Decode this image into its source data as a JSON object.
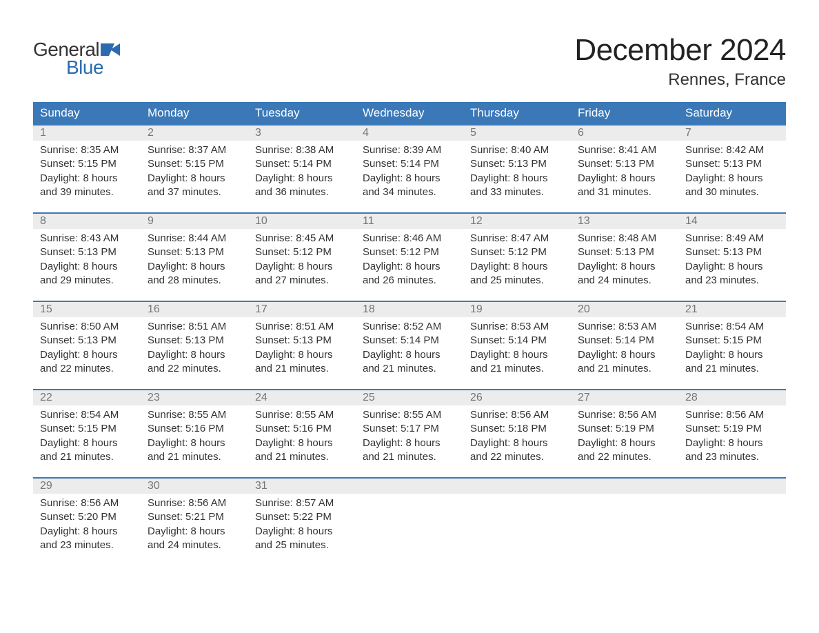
{
  "logo": {
    "text_top": "General",
    "text_bottom": "Blue"
  },
  "title": "December 2024",
  "location": "Rennes, France",
  "colors": {
    "header_bg": "#3b78b8",
    "header_text": "#ffffff",
    "daynum_bg": "#ececec",
    "daynum_text": "#767676",
    "body_text": "#333333",
    "logo_blue": "#2c6bb0",
    "week_border": "#3b78b8",
    "page_bg": "#ffffff"
  },
  "type": "calendar-table",
  "weekdays": [
    "Sunday",
    "Monday",
    "Tuesday",
    "Wednesday",
    "Thursday",
    "Friday",
    "Saturday"
  ],
  "weeks": [
    [
      {
        "day": "1",
        "sunrise": "Sunrise: 8:35 AM",
        "sunset": "Sunset: 5:15 PM",
        "d1": "Daylight: 8 hours",
        "d2": "and 39 minutes."
      },
      {
        "day": "2",
        "sunrise": "Sunrise: 8:37 AM",
        "sunset": "Sunset: 5:15 PM",
        "d1": "Daylight: 8 hours",
        "d2": "and 37 minutes."
      },
      {
        "day": "3",
        "sunrise": "Sunrise: 8:38 AM",
        "sunset": "Sunset: 5:14 PM",
        "d1": "Daylight: 8 hours",
        "d2": "and 36 minutes."
      },
      {
        "day": "4",
        "sunrise": "Sunrise: 8:39 AM",
        "sunset": "Sunset: 5:14 PM",
        "d1": "Daylight: 8 hours",
        "d2": "and 34 minutes."
      },
      {
        "day": "5",
        "sunrise": "Sunrise: 8:40 AM",
        "sunset": "Sunset: 5:13 PM",
        "d1": "Daylight: 8 hours",
        "d2": "and 33 minutes."
      },
      {
        "day": "6",
        "sunrise": "Sunrise: 8:41 AM",
        "sunset": "Sunset: 5:13 PM",
        "d1": "Daylight: 8 hours",
        "d2": "and 31 minutes."
      },
      {
        "day": "7",
        "sunrise": "Sunrise: 8:42 AM",
        "sunset": "Sunset: 5:13 PM",
        "d1": "Daylight: 8 hours",
        "d2": "and 30 minutes."
      }
    ],
    [
      {
        "day": "8",
        "sunrise": "Sunrise: 8:43 AM",
        "sunset": "Sunset: 5:13 PM",
        "d1": "Daylight: 8 hours",
        "d2": "and 29 minutes."
      },
      {
        "day": "9",
        "sunrise": "Sunrise: 8:44 AM",
        "sunset": "Sunset: 5:13 PM",
        "d1": "Daylight: 8 hours",
        "d2": "and 28 minutes."
      },
      {
        "day": "10",
        "sunrise": "Sunrise: 8:45 AM",
        "sunset": "Sunset: 5:12 PM",
        "d1": "Daylight: 8 hours",
        "d2": "and 27 minutes."
      },
      {
        "day": "11",
        "sunrise": "Sunrise: 8:46 AM",
        "sunset": "Sunset: 5:12 PM",
        "d1": "Daylight: 8 hours",
        "d2": "and 26 minutes."
      },
      {
        "day": "12",
        "sunrise": "Sunrise: 8:47 AM",
        "sunset": "Sunset: 5:12 PM",
        "d1": "Daylight: 8 hours",
        "d2": "and 25 minutes."
      },
      {
        "day": "13",
        "sunrise": "Sunrise: 8:48 AM",
        "sunset": "Sunset: 5:13 PM",
        "d1": "Daylight: 8 hours",
        "d2": "and 24 minutes."
      },
      {
        "day": "14",
        "sunrise": "Sunrise: 8:49 AM",
        "sunset": "Sunset: 5:13 PM",
        "d1": "Daylight: 8 hours",
        "d2": "and 23 minutes."
      }
    ],
    [
      {
        "day": "15",
        "sunrise": "Sunrise: 8:50 AM",
        "sunset": "Sunset: 5:13 PM",
        "d1": "Daylight: 8 hours",
        "d2": "and 22 minutes."
      },
      {
        "day": "16",
        "sunrise": "Sunrise: 8:51 AM",
        "sunset": "Sunset: 5:13 PM",
        "d1": "Daylight: 8 hours",
        "d2": "and 22 minutes."
      },
      {
        "day": "17",
        "sunrise": "Sunrise: 8:51 AM",
        "sunset": "Sunset: 5:13 PM",
        "d1": "Daylight: 8 hours",
        "d2": "and 21 minutes."
      },
      {
        "day": "18",
        "sunrise": "Sunrise: 8:52 AM",
        "sunset": "Sunset: 5:14 PM",
        "d1": "Daylight: 8 hours",
        "d2": "and 21 minutes."
      },
      {
        "day": "19",
        "sunrise": "Sunrise: 8:53 AM",
        "sunset": "Sunset: 5:14 PM",
        "d1": "Daylight: 8 hours",
        "d2": "and 21 minutes."
      },
      {
        "day": "20",
        "sunrise": "Sunrise: 8:53 AM",
        "sunset": "Sunset: 5:14 PM",
        "d1": "Daylight: 8 hours",
        "d2": "and 21 minutes."
      },
      {
        "day": "21",
        "sunrise": "Sunrise: 8:54 AM",
        "sunset": "Sunset: 5:15 PM",
        "d1": "Daylight: 8 hours",
        "d2": "and 21 minutes."
      }
    ],
    [
      {
        "day": "22",
        "sunrise": "Sunrise: 8:54 AM",
        "sunset": "Sunset: 5:15 PM",
        "d1": "Daylight: 8 hours",
        "d2": "and 21 minutes."
      },
      {
        "day": "23",
        "sunrise": "Sunrise: 8:55 AM",
        "sunset": "Sunset: 5:16 PM",
        "d1": "Daylight: 8 hours",
        "d2": "and 21 minutes."
      },
      {
        "day": "24",
        "sunrise": "Sunrise: 8:55 AM",
        "sunset": "Sunset: 5:16 PM",
        "d1": "Daylight: 8 hours",
        "d2": "and 21 minutes."
      },
      {
        "day": "25",
        "sunrise": "Sunrise: 8:55 AM",
        "sunset": "Sunset: 5:17 PM",
        "d1": "Daylight: 8 hours",
        "d2": "and 21 minutes."
      },
      {
        "day": "26",
        "sunrise": "Sunrise: 8:56 AM",
        "sunset": "Sunset: 5:18 PM",
        "d1": "Daylight: 8 hours",
        "d2": "and 22 minutes."
      },
      {
        "day": "27",
        "sunrise": "Sunrise: 8:56 AM",
        "sunset": "Sunset: 5:19 PM",
        "d1": "Daylight: 8 hours",
        "d2": "and 22 minutes."
      },
      {
        "day": "28",
        "sunrise": "Sunrise: 8:56 AM",
        "sunset": "Sunset: 5:19 PM",
        "d1": "Daylight: 8 hours",
        "d2": "and 23 minutes."
      }
    ],
    [
      {
        "day": "29",
        "sunrise": "Sunrise: 8:56 AM",
        "sunset": "Sunset: 5:20 PM",
        "d1": "Daylight: 8 hours",
        "d2": "and 23 minutes."
      },
      {
        "day": "30",
        "sunrise": "Sunrise: 8:56 AM",
        "sunset": "Sunset: 5:21 PM",
        "d1": "Daylight: 8 hours",
        "d2": "and 24 minutes."
      },
      {
        "day": "31",
        "sunrise": "Sunrise: 8:57 AM",
        "sunset": "Sunset: 5:22 PM",
        "d1": "Daylight: 8 hours",
        "d2": "and 25 minutes."
      },
      null,
      null,
      null,
      null
    ]
  ]
}
